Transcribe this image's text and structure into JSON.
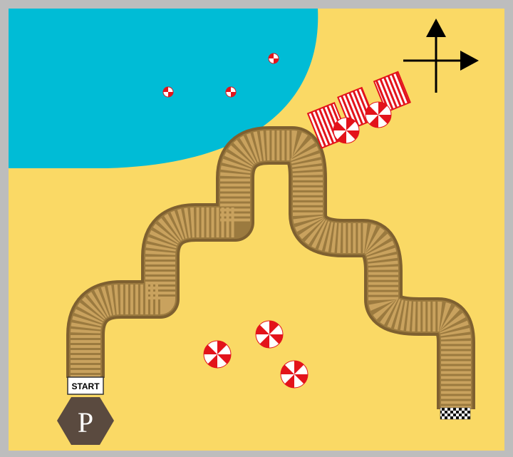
{
  "colors": {
    "border": "#bdbdbd",
    "sand": "#fad965",
    "water": "#00bcd6",
    "boardwalk": "#9b7a3f",
    "plank": "#c9a25e",
    "umbrella_red": "#e3131b",
    "parking": "#5a4a3f"
  },
  "game": {
    "start_label": "START",
    "parking_label": "P"
  },
  "icons": {
    "compass": "compass-arrows-icon",
    "finish": "checkered-flag-icon",
    "parking": "parking-hexagon-icon"
  }
}
